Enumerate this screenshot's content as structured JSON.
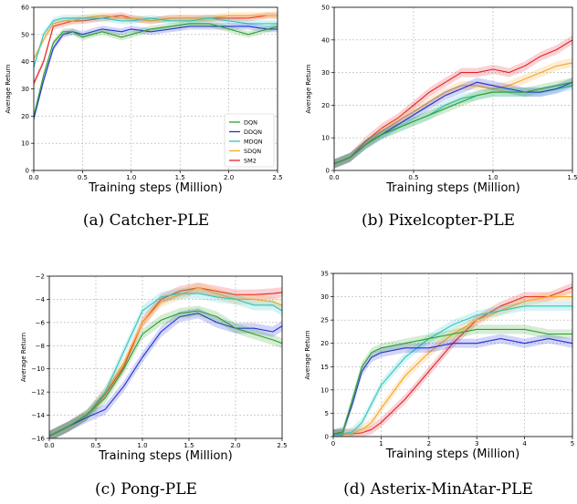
{
  "colors": {
    "DQN": "#2ca02c",
    "DDQN": "#1f2fd6",
    "MDQN": "#2fc4c4",
    "SDQN": "#f5a623",
    "SM2": "#e8202a"
  },
  "chart_data": [
    {
      "type": "line",
      "caption": "(a) Catcher-PLE",
      "xlabel": "Training steps (Million)",
      "ylabel": "Average Return",
      "xlim": [
        0,
        2.5
      ],
      "ylim": [
        0,
        60
      ],
      "xticks": [
        "0.0",
        "0.5",
        "1.0",
        "1.5",
        "2.0",
        "2.5"
      ],
      "xtick_values": [
        0,
        0.5,
        1.0,
        1.5,
        2.0,
        2.5
      ],
      "yticks": [
        "0",
        "10",
        "20",
        "30",
        "40",
        "50",
        "60"
      ],
      "ytick_values": [
        0,
        10,
        20,
        30,
        40,
        50,
        60
      ],
      "legend": "lower right",
      "grid": true,
      "series": [
        {
          "name": "DQN",
          "x": [
            0,
            0.1,
            0.2,
            0.3,
            0.4,
            0.5,
            0.7,
            0.9,
            1.0,
            1.2,
            1.4,
            1.6,
            1.8,
            2.0,
            2.2,
            2.4,
            2.5
          ],
          "y": [
            20,
            35,
            47,
            51,
            51,
            49,
            51,
            49,
            50,
            52,
            53,
            54,
            54,
            52,
            50,
            52,
            53
          ]
        },
        {
          "name": "DDQN",
          "x": [
            0,
            0.1,
            0.2,
            0.3,
            0.4,
            0.5,
            0.7,
            0.9,
            1.0,
            1.2,
            1.4,
            1.6,
            1.8,
            2.0,
            2.2,
            2.4,
            2.5
          ],
          "y": [
            19,
            33,
            45,
            50,
            51,
            50,
            52,
            51,
            52,
            51,
            52,
            53,
            53,
            53,
            53,
            52,
            52
          ]
        },
        {
          "name": "MDQN",
          "x": [
            0,
            0.1,
            0.2,
            0.3,
            0.4,
            0.5,
            0.7,
            0.9,
            1.0,
            1.2,
            1.4,
            1.6,
            1.8,
            2.0,
            2.2,
            2.4,
            2.5
          ],
          "y": [
            38,
            50,
            55,
            56,
            56,
            56,
            56,
            55,
            55,
            56,
            55,
            55,
            56,
            55,
            54,
            54,
            54
          ]
        },
        {
          "name": "SDQN",
          "x": [
            0,
            0.1,
            0.2,
            0.3,
            0.4,
            0.5,
            0.7,
            0.9,
            1.0,
            1.2,
            1.4,
            1.6,
            1.8,
            2.0,
            2.2,
            2.4,
            2.5
          ],
          "y": [
            41,
            48,
            54,
            55,
            55,
            56,
            57,
            56,
            56,
            55,
            56,
            56,
            56,
            57,
            57,
            57,
            57
          ]
        },
        {
          "name": "SM2",
          "x": [
            0,
            0.1,
            0.2,
            0.3,
            0.4,
            0.5,
            0.7,
            0.9,
            1.0,
            1.2,
            1.4,
            1.6,
            1.8,
            2.0,
            2.2,
            2.4,
            2.5
          ],
          "y": [
            32,
            40,
            53,
            54,
            55,
            55,
            56,
            57,
            56,
            55,
            56,
            56,
            56,
            56,
            56,
            57,
            57
          ]
        }
      ]
    },
    {
      "type": "line",
      "caption": "(b) Pixelcopter-PLE",
      "xlabel": "Training steps (Million)",
      "ylabel": "Average Return",
      "xlim": [
        0,
        1.5
      ],
      "ylim": [
        0,
        50
      ],
      "xticks": [
        "0.0",
        "0.5",
        "1.0",
        "1.5"
      ],
      "xtick_values": [
        0,
        0.5,
        1.0,
        1.5
      ],
      "yticks": [
        "0",
        "10",
        "20",
        "30",
        "40",
        "50"
      ],
      "ytick_values": [
        0,
        10,
        20,
        30,
        40,
        50
      ],
      "grid": true,
      "series": [
        {
          "name": "DQN",
          "x": [
            0,
            0.1,
            0.2,
            0.3,
            0.4,
            0.5,
            0.6,
            0.7,
            0.8,
            0.9,
            1.0,
            1.1,
            1.2,
            1.3,
            1.4,
            1.5
          ],
          "y": [
            2,
            4,
            8,
            11,
            13,
            15,
            17,
            19,
            21,
            23,
            24,
            24,
            24,
            25,
            26,
            27
          ]
        },
        {
          "name": "DDQN",
          "x": [
            0,
            0.1,
            0.2,
            0.3,
            0.4,
            0.5,
            0.6,
            0.7,
            0.8,
            0.9,
            1.0,
            1.1,
            1.2,
            1.3,
            1.4,
            1.5
          ],
          "y": [
            2,
            4,
            8,
            11,
            14,
            17,
            20,
            23,
            25,
            27,
            26,
            25,
            24,
            24,
            25,
            27
          ]
        },
        {
          "name": "MDQN",
          "x": [
            0,
            0.1,
            0.2,
            0.3,
            0.4,
            0.5,
            0.6,
            0.7,
            0.8,
            0.9,
            1.0,
            1.1,
            1.2,
            1.3,
            1.4,
            1.5
          ],
          "y": [
            2,
            4,
            8,
            11,
            13,
            15,
            17,
            20,
            22,
            23,
            24,
            24,
            24,
            24,
            25,
            26
          ]
        },
        {
          "name": "SDQN",
          "x": [
            0,
            0.1,
            0.2,
            0.3,
            0.4,
            0.5,
            0.6,
            0.7,
            0.8,
            0.9,
            1.0,
            1.1,
            1.2,
            1.3,
            1.4,
            1.5
          ],
          "y": [
            2,
            4,
            8,
            12,
            15,
            18,
            21,
            24,
            26,
            26,
            25,
            26,
            28,
            30,
            32,
            33
          ]
        },
        {
          "name": "SM2",
          "x": [
            0,
            0.1,
            0.2,
            0.3,
            0.4,
            0.5,
            0.6,
            0.7,
            0.8,
            0.9,
            1.0,
            1.1,
            1.2,
            1.3,
            1.4,
            1.5
          ],
          "y": [
            2,
            4,
            9,
            13,
            16,
            20,
            24,
            27,
            30,
            30,
            31,
            30,
            32,
            35,
            37,
            40
          ]
        }
      ]
    },
    {
      "type": "line",
      "caption": "(c) Pong-PLE",
      "xlabel": "Training steps (Million)",
      "ylabel": "Average Return",
      "xlim": [
        0,
        2.5
      ],
      "ylim": [
        -16,
        -2
      ],
      "xticks": [
        "0.0",
        "0.5",
        "1.0",
        "1.5",
        "2.0",
        "2.5"
      ],
      "xtick_values": [
        0,
        0.5,
        1.0,
        1.5,
        2.0,
        2.5
      ],
      "yticks": [
        "−16",
        "−14",
        "−12",
        "−10",
        "−8",
        "−6",
        "−4",
        "−2"
      ],
      "ytick_values": [
        -16,
        -14,
        -12,
        -10,
        -8,
        -6,
        -4,
        -2
      ],
      "grid": true,
      "series": [
        {
          "name": "DQN",
          "x": [
            0,
            0.2,
            0.4,
            0.6,
            0.8,
            1.0,
            1.2,
            1.4,
            1.6,
            1.8,
            2.0,
            2.2,
            2.4,
            2.5
          ],
          "y": [
            -15.8,
            -15,
            -14,
            -12.5,
            -10,
            -7,
            -5.8,
            -5.2,
            -5,
            -5.5,
            -6.5,
            -7,
            -7.5,
            -7.8
          ]
        },
        {
          "name": "DDQN",
          "x": [
            0,
            0.2,
            0.4,
            0.6,
            0.8,
            1.0,
            1.2,
            1.4,
            1.6,
            1.8,
            2.0,
            2.2,
            2.4,
            2.5
          ],
          "y": [
            -15.8,
            -15,
            -14.2,
            -13.5,
            -11.5,
            -9,
            -6.8,
            -5.5,
            -5.2,
            -6,
            -6.5,
            -6.5,
            -6.8,
            -6.3
          ]
        },
        {
          "name": "MDQN",
          "x": [
            0,
            0.2,
            0.4,
            0.6,
            0.8,
            1.0,
            1.2,
            1.4,
            1.6,
            1.8,
            2.0,
            2.2,
            2.4,
            2.5
          ],
          "y": [
            -15.8,
            -15,
            -14,
            -12,
            -8.5,
            -5,
            -3.8,
            -3.5,
            -3.5,
            -3.8,
            -4,
            -4.5,
            -4.5,
            -5
          ]
        },
        {
          "name": "SDQN",
          "x": [
            0,
            0.2,
            0.4,
            0.6,
            0.8,
            1.0,
            1.2,
            1.4,
            1.6,
            1.8,
            2.0,
            2.2,
            2.4,
            2.5
          ],
          "y": [
            -15.8,
            -15,
            -14,
            -12,
            -9.5,
            -6,
            -4.2,
            -3.6,
            -3,
            -3.5,
            -4,
            -4,
            -4.2,
            -4.5
          ]
        },
        {
          "name": "SM2",
          "x": [
            0,
            0.2,
            0.4,
            0.6,
            0.8,
            1.0,
            1.2,
            1.4,
            1.6,
            1.8,
            2.0,
            2.2,
            2.4,
            2.5
          ],
          "y": [
            -15.8,
            -15,
            -14,
            -12.2,
            -9.8,
            -6,
            -4,
            -3.3,
            -3,
            -3.3,
            -3.6,
            -3.6,
            -3.5,
            -3.4
          ]
        }
      ]
    },
    {
      "type": "line",
      "caption": "(d) Asterix-MinAtar-PLE",
      "xlabel": "Training steps (Million)",
      "ylabel": "Average Return",
      "xlim": [
        0,
        5
      ],
      "ylim": [
        0,
        35
      ],
      "xticks": [
        "0",
        "1",
        "2",
        "3",
        "4",
        "5"
      ],
      "xtick_values": [
        0,
        1,
        2,
        3,
        4,
        5
      ],
      "yticks": [
        "0",
        "5",
        "10",
        "15",
        "20",
        "25",
        "30",
        "35"
      ],
      "ytick_values": [
        0,
        5,
        10,
        15,
        20,
        25,
        30,
        35
      ],
      "grid": true,
      "series": [
        {
          "name": "DQN",
          "x": [
            0,
            0.2,
            0.4,
            0.6,
            0.8,
            1.0,
            1.5,
            2.0,
            2.5,
            3.0,
            3.5,
            4.0,
            4.5,
            5.0
          ],
          "y": [
            0.5,
            1,
            8,
            15,
            18,
            19,
            20,
            21,
            22,
            23,
            23,
            23,
            22,
            22
          ]
        },
        {
          "name": "DDQN",
          "x": [
            0,
            0.2,
            0.4,
            0.6,
            0.8,
            1.0,
            1.5,
            2.0,
            2.5,
            3.0,
            3.5,
            4.0,
            4.5,
            5.0
          ],
          "y": [
            0.5,
            1,
            7,
            14,
            17,
            18,
            19,
            19,
            20,
            20,
            21,
            20,
            21,
            20
          ]
        },
        {
          "name": "MDQN",
          "x": [
            0,
            0.2,
            0.4,
            0.6,
            0.8,
            1.0,
            1.5,
            2.0,
            2.5,
            3.0,
            3.5,
            4.0,
            4.5,
            5.0
          ],
          "y": [
            0.5,
            0.6,
            1,
            3,
            7,
            11,
            17,
            21,
            24,
            26,
            27,
            28,
            28,
            28
          ]
        },
        {
          "name": "SDQN",
          "x": [
            0,
            0.2,
            0.4,
            0.6,
            0.8,
            1.0,
            1.5,
            2.0,
            2.5,
            3.0,
            3.5,
            4.0,
            4.5,
            5.0
          ],
          "y": [
            0.5,
            0.5,
            0.7,
            1.5,
            3,
            6,
            13,
            18,
            22,
            25,
            27,
            29,
            30,
            30
          ]
        },
        {
          "name": "SM2",
          "x": [
            0,
            0.2,
            0.4,
            0.6,
            0.8,
            1.0,
            1.5,
            2.0,
            2.5,
            3.0,
            3.5,
            4.0,
            4.5,
            5.0
          ],
          "y": [
            0.5,
            0.5,
            0.6,
            0.8,
            1.5,
            3,
            8,
            14,
            20,
            25,
            28,
            30,
            30,
            32
          ]
        }
      ]
    }
  ]
}
